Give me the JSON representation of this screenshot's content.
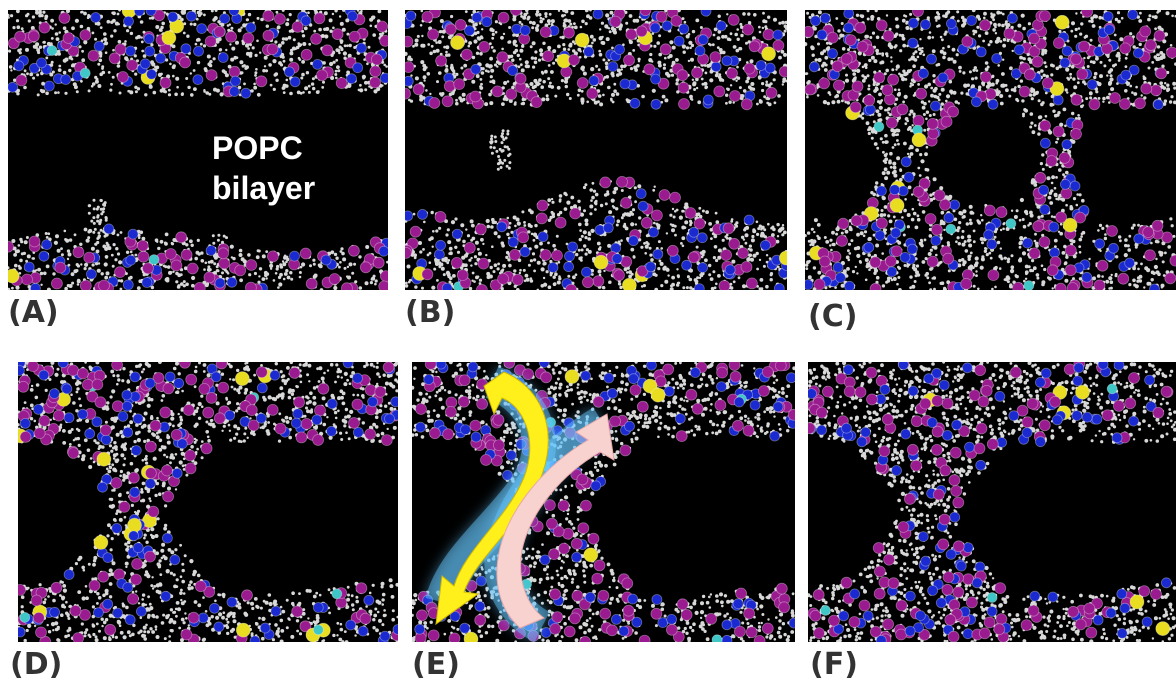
{
  "figure": {
    "annotation": {
      "line1": "POPC",
      "line2": "bilayer"
    },
    "colors": {
      "background": "#000000",
      "lipid_tail": "#d8d8d8",
      "headgroup_phosphate": "#9a1a8f",
      "headgroup_choline": "#1a2ad0",
      "ion_sodium": "#e8dd20",
      "ion_cyan": "#3fc6c6",
      "arrow_yellow": "#ffef1a",
      "arrow_pink": "#f8c8c4",
      "arrow_glow": "#66c8ff"
    },
    "panels": [
      {
        "label": "(A)",
        "stage": "bilayer"
      },
      {
        "label": "(B)",
        "stage": "tail-protrusion"
      },
      {
        "label": "(C)",
        "stage": "stalk-forming"
      },
      {
        "label": "(D)",
        "stage": "stalk"
      },
      {
        "label": "(E)",
        "stage": "stalk-with-flip-arrows"
      },
      {
        "label": "(F)",
        "stage": "stalk"
      }
    ]
  }
}
